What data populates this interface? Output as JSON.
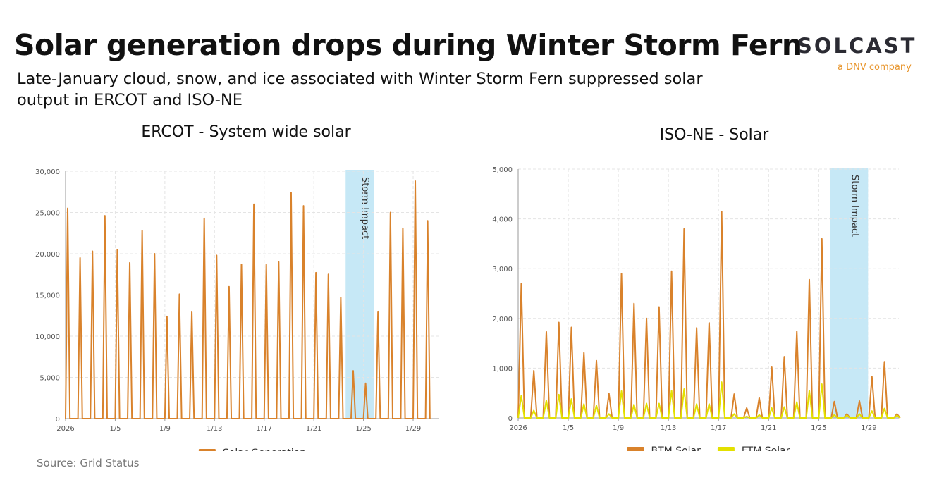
{
  "header": {
    "title": "Solar generation drops during Winter Storm Fern",
    "subtitle": "Late-January cloud, snow, and ice associated with Winter Storm Fern suppressed solar output in ERCOT and ISO-NE",
    "logo": "SOLCAST",
    "logo_tagline": "a DNV company"
  },
  "source": "Source: Grid Status",
  "chart_data": [
    {
      "type": "line",
      "title": "ERCOT - System wide solar",
      "x": [
        1,
        1.17,
        1.35,
        2,
        2.17,
        2.35,
        3,
        3.17,
        3.35,
        4,
        4.17,
        4.35,
        5,
        5.17,
        5.35,
        6,
        6.17,
        6.35,
        7,
        7.17,
        7.35,
        8,
        8.17,
        8.35,
        9,
        9.17,
        9.35,
        10,
        10.17,
        10.35,
        11,
        11.17,
        11.35,
        12,
        12.17,
        12.35,
        13,
        13.17,
        13.35,
        14,
        14.17,
        14.35,
        15,
        15.17,
        15.35,
        16,
        16.17,
        16.35,
        17,
        17.17,
        17.35,
        18,
        18.17,
        18.35,
        19,
        19.17,
        19.35,
        20,
        20.17,
        20.35,
        21,
        21.17,
        21.35,
        22,
        22.17,
        22.35,
        23,
        23.17,
        23.35,
        24,
        24.17,
        24.35,
        25,
        25.17,
        25.35,
        26,
        26.17,
        26.35,
        27,
        27.17,
        27.35,
        28,
        28.17,
        28.35,
        29,
        29.17,
        29.35,
        30,
        30.17,
        30.35
      ],
      "series": [
        {
          "name": "Solar Generation",
          "color": "#d9822b",
          "values": [
            0,
            25500,
            0,
            0,
            19500,
            0,
            0,
            20300,
            0,
            0,
            24600,
            0,
            0,
            20500,
            0,
            0,
            18900,
            0,
            0,
            22800,
            0,
            0,
            20000,
            0,
            0,
            12400,
            0,
            0,
            15100,
            0,
            0,
            13000,
            0,
            0,
            24300,
            0,
            0,
            19800,
            0,
            0,
            16000,
            0,
            0,
            18700,
            0,
            0,
            26000,
            0,
            0,
            18700,
            0,
            0,
            19000,
            0,
            0,
            27400,
            0,
            0,
            25800,
            0,
            0,
            17700,
            0,
            0,
            17500,
            0,
            0,
            14700,
            0,
            0,
            5800,
            0,
            0,
            4300,
            0,
            0,
            13000,
            0,
            0,
            25000,
            0,
            0,
            23100,
            0,
            0,
            28800,
            0,
            0,
            24000,
            0
          ]
        }
      ],
      "xlim": [
        1,
        31.1
      ],
      "xticks": [
        {
          "value": 1,
          "label": "2026"
        },
        {
          "value": 5,
          "label": "1/5"
        },
        {
          "value": 9,
          "label": "1/9"
        },
        {
          "value": 13,
          "label": "1/13"
        },
        {
          "value": 17,
          "label": "1/17"
        },
        {
          "value": 21,
          "label": "1/21"
        },
        {
          "value": 25,
          "label": "1/25"
        },
        {
          "value": 29,
          "label": "1/29"
        }
      ],
      "ylim": [
        0,
        30000
      ],
      "yticks": [
        0,
        {
          "value": 5000,
          "label": "5,000"
        },
        {
          "value": 10000,
          "label": "10,000"
        },
        {
          "value": 15000,
          "label": "15,000"
        },
        {
          "value": 20000,
          "label": "20,000"
        },
        {
          "value": 25000,
          "label": "25,000"
        },
        {
          "value": 30000,
          "label": "30,000"
        }
      ],
      "band": {
        "label": "Storm Impact",
        "x": [
          23.56,
          25.83
        ],
        "color": "#c6e8f6"
      },
      "grid": true
    },
    {
      "type": "line",
      "title": "ISO-NE - Solar",
      "x": [
        1,
        1.25,
        1.5,
        2,
        2.25,
        2.5,
        3,
        3.25,
        3.5,
        4,
        4.25,
        4.5,
        5,
        5.25,
        5.5,
        6,
        6.25,
        6.5,
        7,
        7.25,
        7.5,
        8,
        8.25,
        8.5,
        9,
        9.25,
        9.5,
        10,
        10.25,
        10.5,
        11,
        11.25,
        11.5,
        12,
        12.25,
        12.5,
        13,
        13.25,
        13.5,
        14,
        14.25,
        14.5,
        15,
        15.25,
        15.5,
        16,
        16.25,
        16.5,
        17,
        17.25,
        17.5,
        18,
        18.25,
        18.5,
        19,
        19.25,
        19.5,
        20,
        20.25,
        20.5,
        21,
        21.25,
        21.5,
        22,
        22.25,
        22.5,
        23,
        23.25,
        23.5,
        24,
        24.25,
        24.5,
        25,
        25.25,
        25.5,
        26,
        26.25,
        26.5,
        27,
        27.25,
        27.5,
        28,
        28.25,
        28.5,
        29,
        29.25,
        29.5,
        30,
        30.25,
        30.5,
        31,
        31.25,
        31.5
      ],
      "series": [
        {
          "name": "BTM Solar",
          "color": "#d9822b",
          "values": [
            0,
            2700,
            0,
            0,
            950,
            0,
            0,
            1730,
            0,
            0,
            1920,
            0,
            0,
            1820,
            0,
            0,
            1310,
            0,
            0,
            1150,
            0,
            0,
            490,
            0,
            0,
            2900,
            0,
            0,
            2300,
            0,
            0,
            2000,
            0,
            0,
            2230,
            0,
            0,
            2950,
            0,
            0,
            3800,
            0,
            0,
            1810,
            0,
            0,
            1910,
            0,
            0,
            4150,
            0,
            0,
            480,
            0,
            0,
            200,
            0,
            0,
            400,
            0,
            0,
            1020,
            0,
            0,
            1230,
            0,
            0,
            1740,
            0,
            0,
            2780,
            0,
            0,
            3600,
            0,
            0,
            330,
            0,
            0,
            80,
            0,
            0,
            340,
            0,
            0,
            830,
            0,
            0,
            1130,
            0,
            0,
            80,
            0
          ]
        },
        {
          "name": "FTM Solar",
          "color": "#e3e000",
          "values": [
            0,
            450,
            0,
            0,
            150,
            0,
            0,
            350,
            0,
            0,
            470,
            0,
            0,
            380,
            0,
            0,
            280,
            0,
            0,
            250,
            0,
            0,
            80,
            0,
            0,
            540,
            0,
            0,
            270,
            0,
            0,
            290,
            0,
            0,
            290,
            0,
            0,
            550,
            0,
            0,
            580,
            0,
            0,
            280,
            0,
            0,
            280,
            0,
            0,
            720,
            0,
            0,
            80,
            0,
            0,
            30,
            0,
            0,
            60,
            0,
            0,
            200,
            0,
            0,
            220,
            0,
            0,
            320,
            0,
            0,
            550,
            0,
            0,
            680,
            0,
            0,
            60,
            0,
            0,
            50,
            0,
            0,
            80,
            0,
            0,
            140,
            0,
            0,
            190,
            0,
            0,
            50,
            0
          ]
        }
      ],
      "xlim": [
        1,
        31.4
      ],
      "xticks": [
        {
          "value": 1,
          "label": "2026"
        },
        {
          "value": 5,
          "label": "1/5"
        },
        {
          "value": 9,
          "label": "1/9"
        },
        {
          "value": 13,
          "label": "1/13"
        },
        {
          "value": 17,
          "label": "1/17"
        },
        {
          "value": 21,
          "label": "1/21"
        },
        {
          "value": 25,
          "label": "1/25"
        },
        {
          "value": 29,
          "label": "1/29"
        }
      ],
      "ylim": [
        0,
        5000
      ],
      "yticks": [
        0,
        {
          "value": 1000,
          "label": "1,000"
        },
        {
          "value": 2000,
          "label": "2,000"
        },
        {
          "value": 3000,
          "label": "3,000"
        },
        {
          "value": 4000,
          "label": "4,000"
        },
        {
          "value": 5000,
          "label": "5,000"
        }
      ],
      "band": {
        "label": "Storm Impact",
        "x": [
          25.9,
          28.94
        ],
        "color": "#c6e8f6"
      },
      "grid": true
    }
  ]
}
